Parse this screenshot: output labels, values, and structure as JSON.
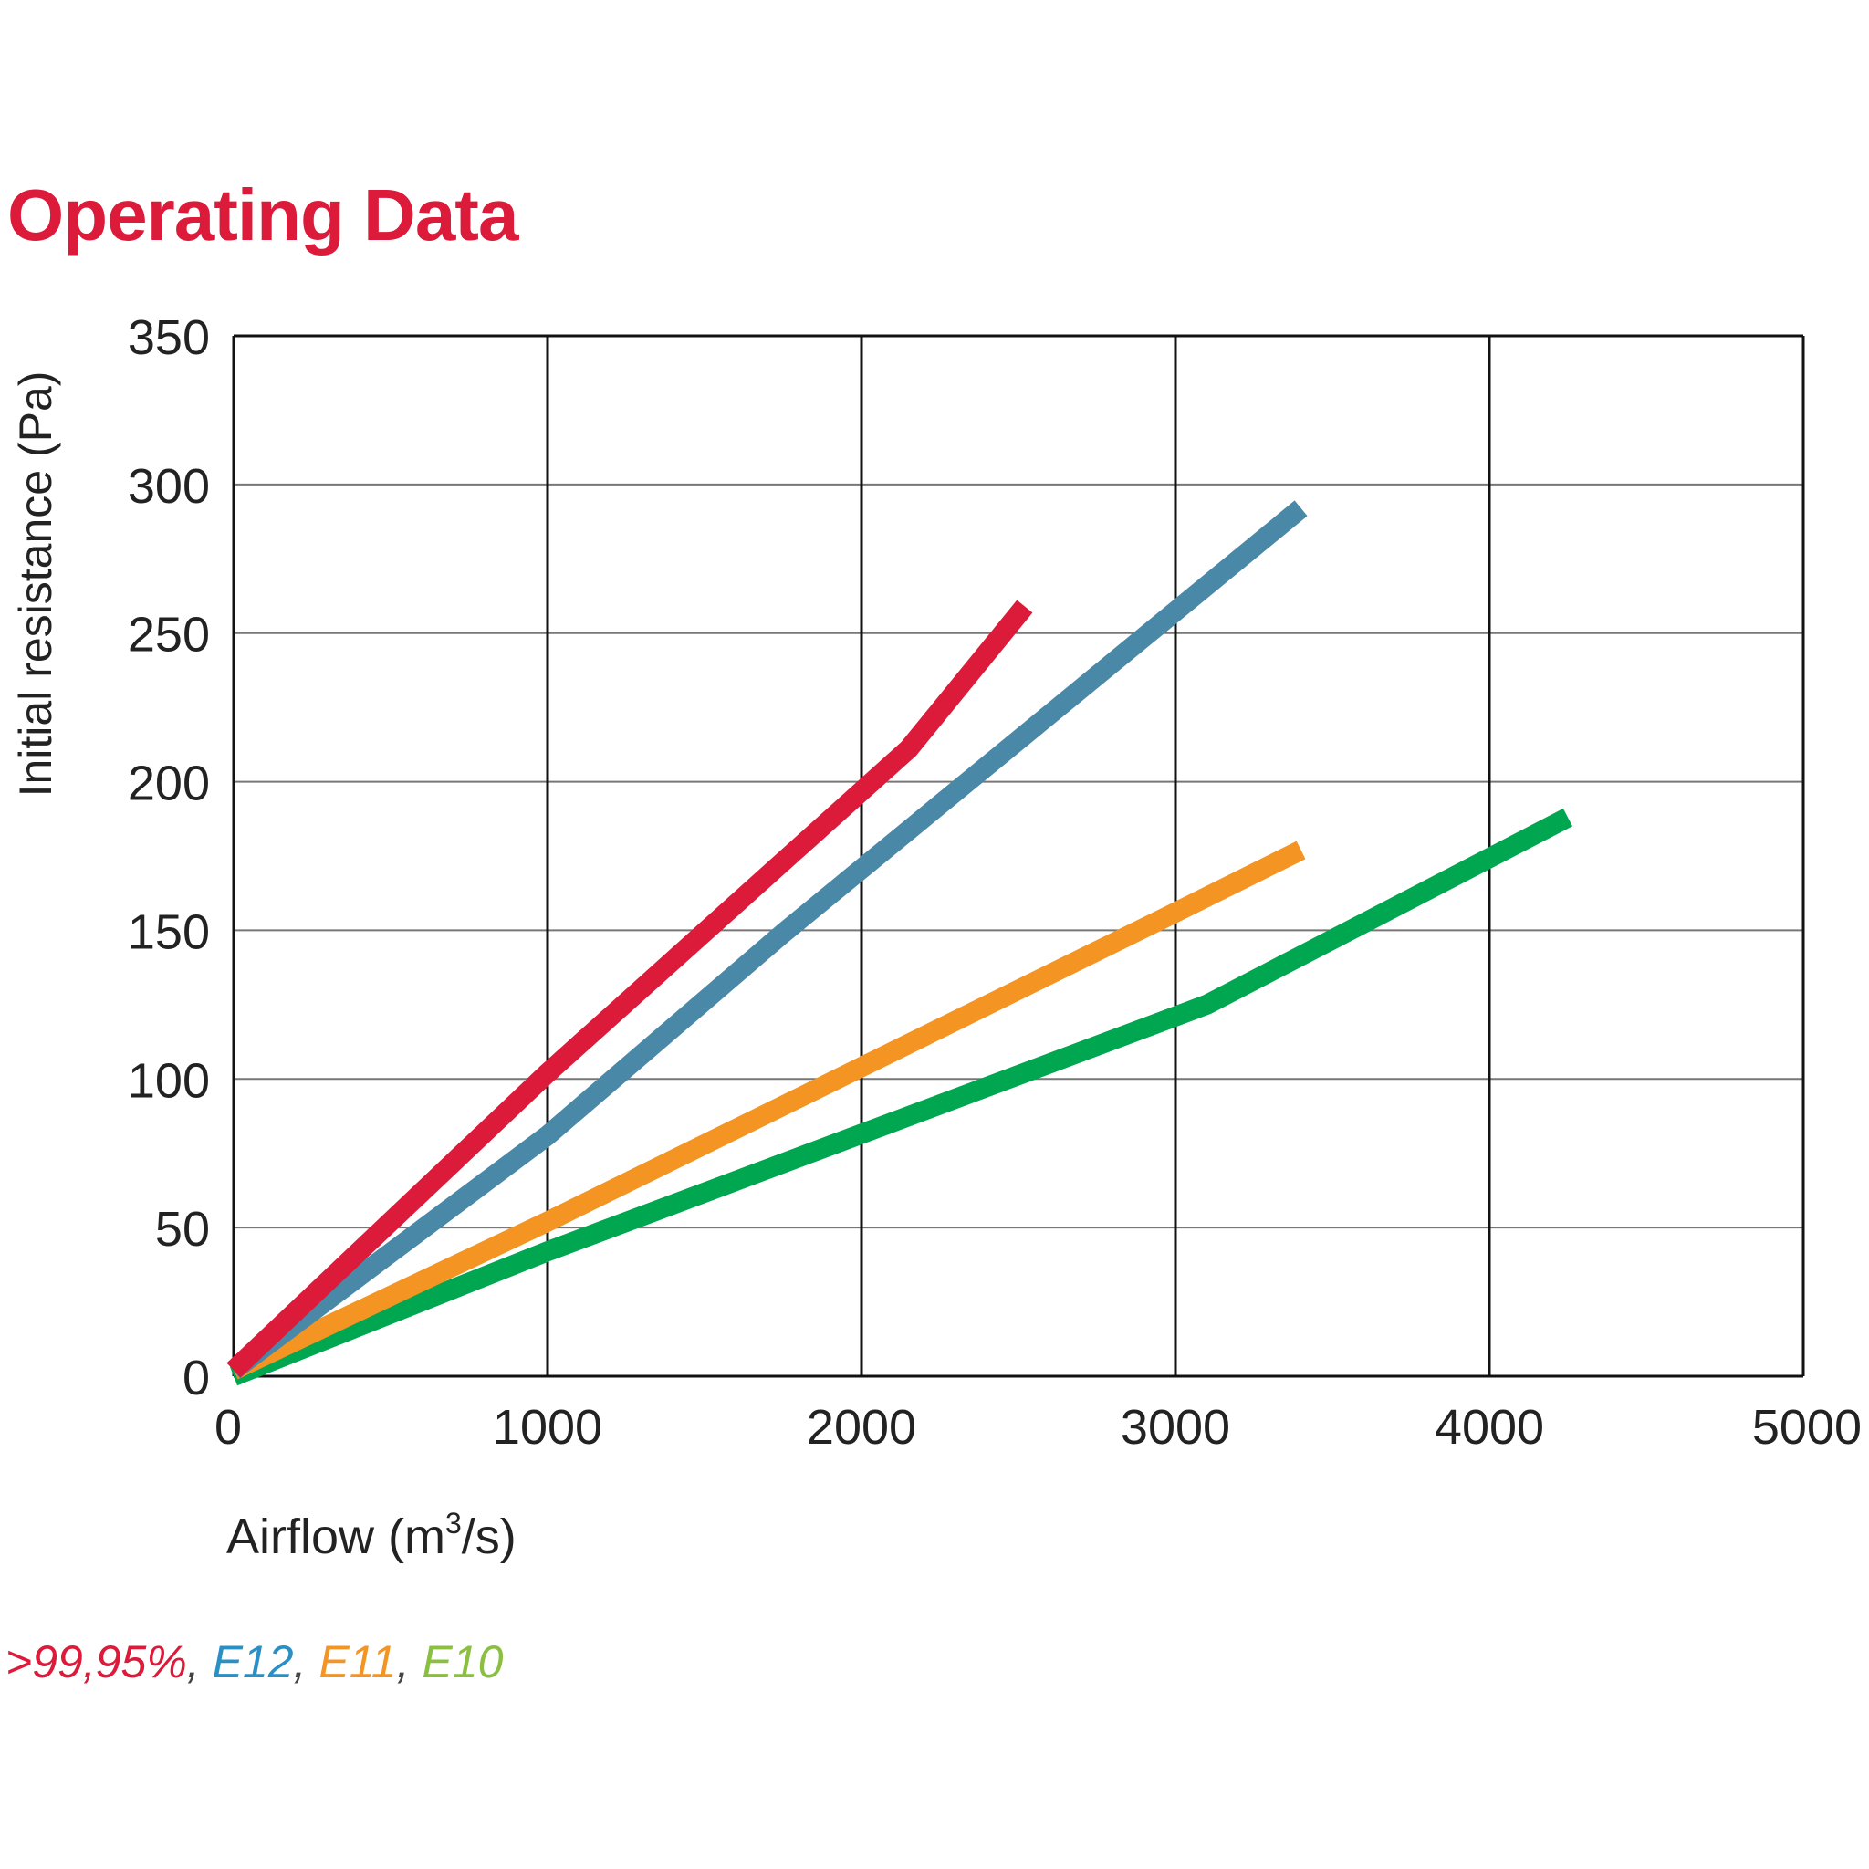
{
  "title": "Operating Data",
  "legend_line": {
    "items": [
      {
        "label": ">99,95%",
        "color": "#dc1a3a"
      },
      {
        "label": "E12",
        "color": "#2a8fc4"
      },
      {
        "label": "E11",
        "color": "#f39423"
      },
      {
        "label": "E10",
        "color": "#8bbf3f"
      }
    ],
    "separator": ", "
  },
  "chart_data": {
    "type": "line",
    "title": "Operating Data",
    "xlabel_main": "Airflow (m",
    "xlabel_sup": "3",
    "xlabel_tail": "/s)",
    "ylabel": "Initial resistance (Pa)",
    "xlim": [
      0,
      5000
    ],
    "ylim": [
      0,
      350
    ],
    "xticks": [
      0,
      1000,
      2000,
      3000,
      4000,
      5000
    ],
    "yticks": [
      0,
      50,
      100,
      150,
      200,
      250,
      300,
      350
    ],
    "x_grid": [
      1000,
      2000,
      3000,
      4000
    ],
    "y_grid": [
      50,
      100,
      150,
      200,
      250,
      300
    ],
    "series": [
      {
        "name": ">99,95%",
        "color": "#dc1a3a",
        "x": [
          0,
          1000,
          2150,
          2520
        ],
        "y": [
          2,
          102,
          211,
          259
        ]
      },
      {
        "name": "E12",
        "color": "#4a88a8",
        "x": [
          0,
          1000,
          1750,
          3400
        ],
        "y": [
          2,
          81,
          149,
          292
        ]
      },
      {
        "name": "E11",
        "color": "#f39423",
        "x": [
          0,
          1000,
          3000,
          3400
        ],
        "y": [
          2,
          52,
          156,
          177
        ]
      },
      {
        "name": "E10",
        "color": "#00a650",
        "x": [
          0,
          1000,
          3100,
          4250
        ],
        "y": [
          0,
          42,
          125,
          188
        ]
      }
    ]
  }
}
